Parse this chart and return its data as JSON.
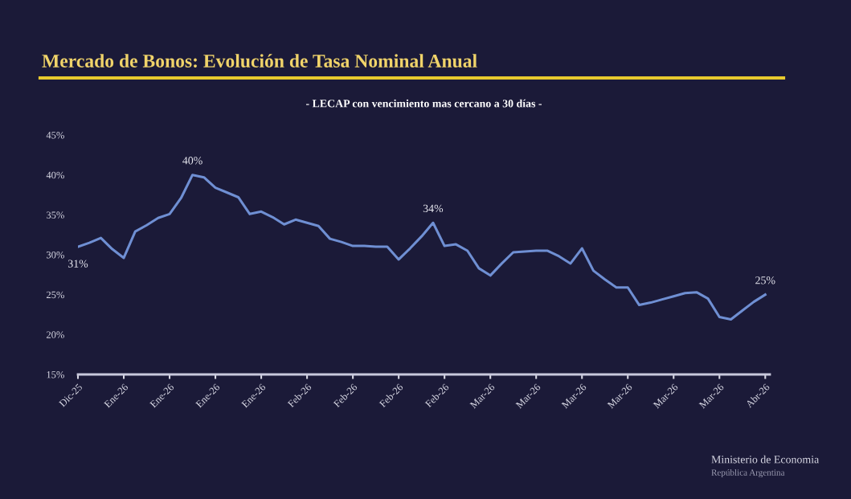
{
  "chart_data": {
    "type": "line",
    "title": "Mercado de Bonos: Evolución de Tasa Nominal Anual",
    "subtitle": "- LECAP con vencimiento mas cercano a 30 días -",
    "categories": [
      "Dic-25",
      null,
      null,
      null,
      "Ene-26",
      null,
      null,
      null,
      "Ene-26",
      null,
      null,
      null,
      "Ene-26",
      null,
      null,
      null,
      "Ene-26",
      null,
      null,
      null,
      "Feb-26",
      null,
      null,
      null,
      "Feb-26",
      null,
      null,
      null,
      "Feb-26",
      null,
      null,
      null,
      "Feb-26",
      null,
      null,
      null,
      "Mar-26",
      null,
      null,
      null,
      "Mar-26",
      null,
      null,
      null,
      "Mar-26",
      null,
      null,
      null,
      "Mar-26",
      null,
      null,
      null,
      "Mar-26",
      null,
      null,
      null,
      "Mar-26",
      null,
      null,
      null,
      "Abr-26"
    ],
    "series": [
      {
        "color": "#6f8fd3",
        "values": [
          31,
          31.5,
          32.1,
          30.7,
          29.6,
          32.9,
          33.7,
          34.6,
          35.1,
          37.1,
          40,
          39.7,
          38.4,
          37.8,
          37.2,
          35.1,
          35.4,
          34.7,
          33.8,
          34.4,
          34.0,
          33.6,
          32.0,
          31.6,
          31.1,
          31.1,
          31.0,
          31.0,
          29.4,
          30.8,
          32.3,
          34,
          31.1,
          31.3,
          30.5,
          28.3,
          27.4,
          28.9,
          30.3,
          30.4,
          30.5,
          30.5,
          29.8,
          28.9,
          30.8,
          28.0,
          26.9,
          25.9,
          25.9,
          23.7,
          24.0,
          24.4,
          24.8,
          25.2,
          25.3,
          24.5,
          22.2,
          21.9,
          23.0,
          24.1,
          25
        ],
        "value_labels": [
          "31%",
          null,
          null,
          null,
          null,
          null,
          null,
          null,
          null,
          null,
          "40%",
          null,
          null,
          null,
          null,
          null,
          null,
          null,
          null,
          null,
          null,
          null,
          null,
          null,
          null,
          null,
          null,
          null,
          null,
          null,
          null,
          "34%",
          null,
          null,
          null,
          null,
          null,
          null,
          null,
          null,
          null,
          null,
          null,
          null,
          null,
          null,
          null,
          null,
          null,
          null,
          null,
          null,
          null,
          null,
          null,
          null,
          null,
          null,
          null,
          null,
          "25%"
        ]
      }
    ],
    "ylim": [
      15,
      45
    ],
    "yticks": [
      {
        "value": 15,
        "label": "15%"
      },
      {
        "value": 20,
        "label": "20%"
      },
      {
        "value": 25,
        "label": "25%"
      },
      {
        "value": 30,
        "label": "30%"
      },
      {
        "value": 35,
        "label": "35%"
      },
      {
        "value": 40,
        "label": "40%"
      },
      {
        "value": 45,
        "label": "45%"
      }
    ],
    "grid": false,
    "marker": "none",
    "line_style": "solid",
    "annotations": [
      "Ministerio de Economia",
      "República Argentina"
    ]
  }
}
